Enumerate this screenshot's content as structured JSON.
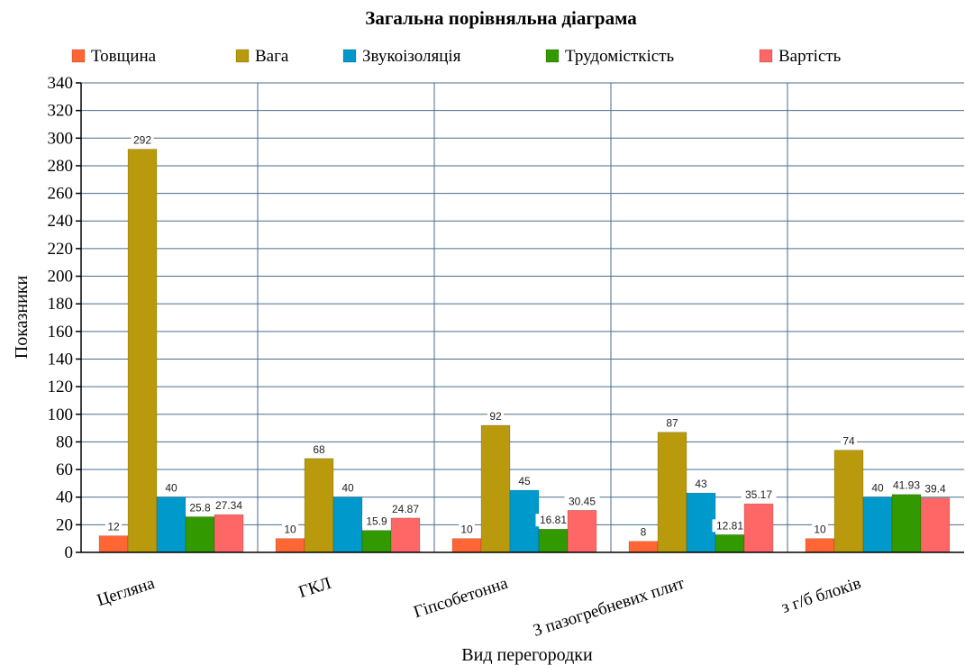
{
  "chart_data": {
    "type": "bar",
    "title": "Загальна порівняльна діаграма",
    "xlabel": "Вид перегородки",
    "ylabel": "Показники",
    "ylim": [
      0,
      340
    ],
    "ytick_step": 20,
    "grid": true,
    "legend_position": "top",
    "categories": [
      "Цегляна",
      "ГКЛ",
      "Гіпсобетонна",
      "З пазогребневих плит",
      "з г/б блоків"
    ],
    "series": [
      {
        "name": "Товщина",
        "color": "#ff6633",
        "values": [
          12,
          10,
          10,
          8,
          10
        ]
      },
      {
        "name": "Вага",
        "color": "#b89a0c",
        "values": [
          292,
          68,
          92,
          87,
          74
        ]
      },
      {
        "name": "Звукоізоляція",
        "color": "#0099cc",
        "values": [
          40,
          40,
          45,
          43,
          40
        ]
      },
      {
        "name": "Трудомісткість",
        "color": "#339900",
        "values": [
          25.8,
          15.9,
          16.81,
          12.81,
          41.93
        ]
      },
      {
        "name": "Вартість",
        "color": "#ff6666",
        "values": [
          27.34,
          24.87,
          30.45,
          35.17,
          39.4
        ]
      }
    ],
    "data_labels": [
      [
        "12",
        "292",
        "40",
        "25.8",
        "27.34"
      ],
      [
        "10",
        "68",
        "40",
        "15.9",
        "24.87"
      ],
      [
        "10",
        "92",
        "45",
        "16.81",
        "30.45"
      ],
      [
        "8",
        "87",
        "43",
        "12.81",
        "35.17"
      ],
      [
        "10",
        "74",
        "40",
        "41.93",
        "39.4"
      ]
    ]
  }
}
